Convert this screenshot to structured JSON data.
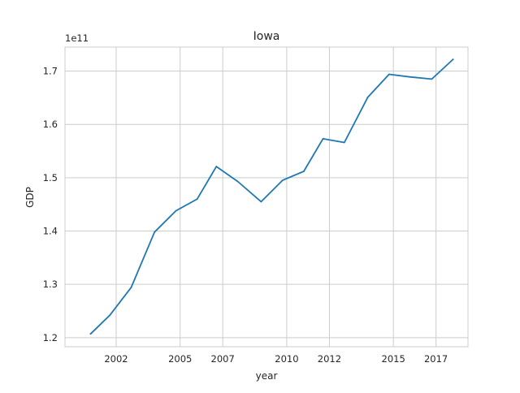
{
  "chart_data": {
    "type": "line",
    "title": "Iowa",
    "xlabel": "year",
    "ylabel": "GDP",
    "y_offset_label": "1e11",
    "x": [
      2000.8,
      2001.7,
      2002.7,
      2003.8,
      2004.8,
      2005.8,
      2006.7,
      2007.7,
      2008.8,
      2009.8,
      2010.8,
      2011.7,
      2012.7,
      2013.8,
      2014.8,
      2015.8,
      2016.8,
      2017.8
    ],
    "series": [
      {
        "name": "",
        "color": "#1f77b4",
        "values": [
          1.207,
          1.242,
          1.294,
          1.398,
          1.438,
          1.46,
          1.521,
          1.493,
          1.455,
          1.495,
          1.512,
          1.573,
          1.566,
          1.651,
          1.694,
          1.689,
          1.685,
          1.722
        ]
      }
    ],
    "xlim": [
      1999.6,
      2018.5
    ],
    "ylim": [
      1.183,
      1.745
    ],
    "x_ticks": [
      2002,
      2005,
      2007,
      2010,
      2012,
      2015,
      2017
    ],
    "y_ticks": [
      1.2,
      1.3,
      1.4,
      1.5,
      1.6,
      1.7
    ],
    "x_tick_labels": [
      "2002",
      "2005",
      "2007",
      "2010",
      "2012",
      "2015",
      "2017"
    ],
    "y_tick_labels": [
      "1.2",
      "1.3",
      "1.4",
      "1.5",
      "1.6",
      "1.7"
    ],
    "grid": true
  }
}
